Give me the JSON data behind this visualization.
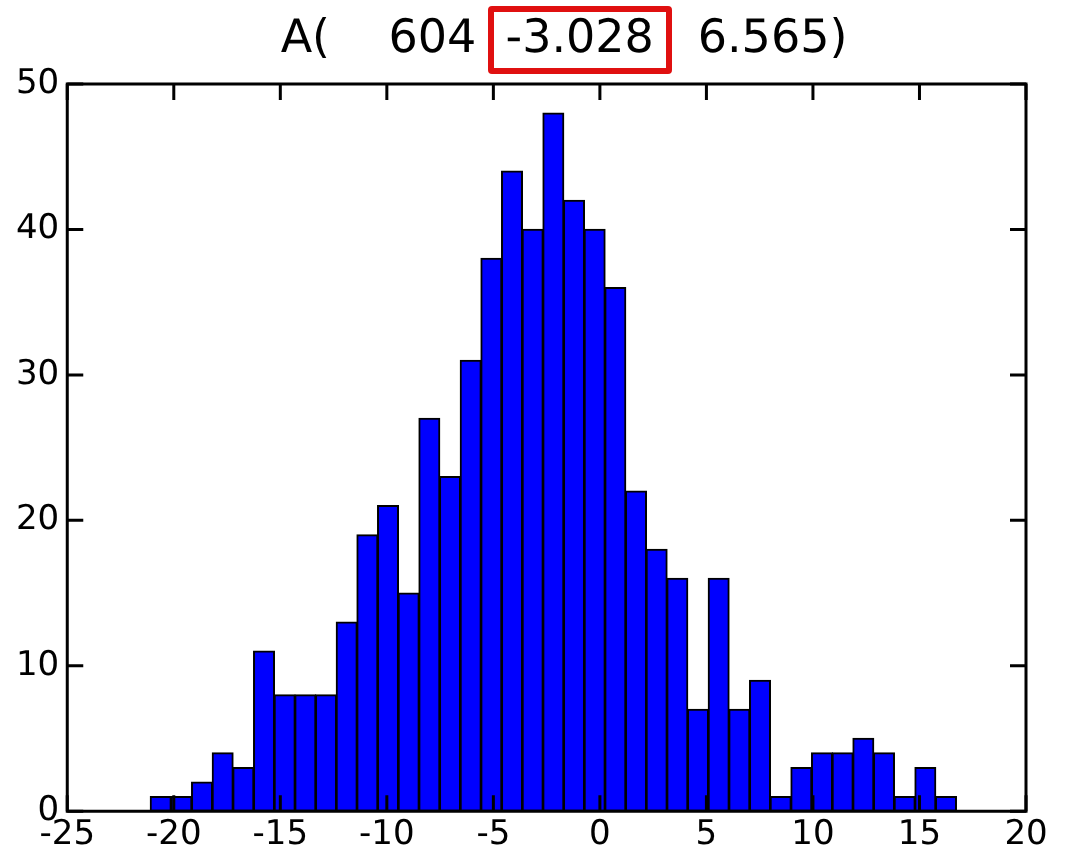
{
  "chart_data": {
    "type": "histogram",
    "title": "A(    604  -3.028   6.565)",
    "bins": [
      -21.1,
      -20.13,
      -19.16,
      -18.19,
      -17.22,
      -16.25,
      -15.28,
      -14.31,
      -13.34,
      -12.37,
      -11.4,
      -10.43,
      -9.46,
      -8.49,
      -7.52,
      -6.55,
      -5.58,
      -4.61,
      -3.64,
      -2.67,
      -1.7,
      -0.73,
      0.24,
      1.21,
      2.18,
      3.15,
      4.12,
      5.09,
      6.06,
      7.03,
      8,
      8.97,
      9.94,
      10.91,
      11.88,
      12.85,
      13.82,
      14.79,
      15.76,
      16.73
    ],
    "values": [
      1,
      1,
      2,
      4,
      3,
      11,
      8,
      8,
      8,
      13,
      19,
      21,
      15,
      27,
      23,
      31,
      38,
      44,
      40,
      48,
      42,
      40,
      36,
      22,
      18,
      16,
      7,
      16,
      7,
      9,
      1,
      3,
      4,
      4,
      5,
      4,
      1,
      3,
      1
    ],
    "color": "#0000ff",
    "xlim": [
      -25,
      20
    ],
    "xticks": [
      -25,
      -20,
      -15,
      -10,
      -5,
      0,
      5,
      10,
      15,
      20
    ],
    "ylim": [
      0,
      50
    ],
    "yticks": [
      0,
      10,
      20,
      30,
      40,
      50
    ],
    "grid": false
  }
}
